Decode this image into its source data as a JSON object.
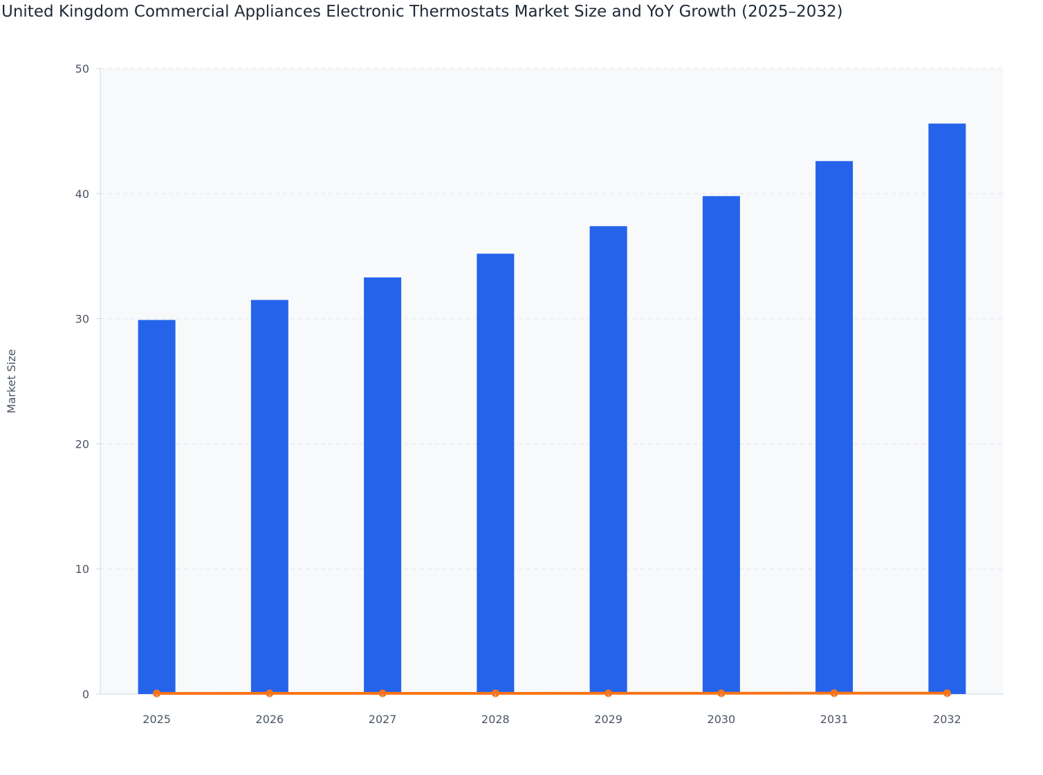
{
  "chart_data": {
    "type": "bar",
    "title": "United Kingdom Commercial Appliances Electronic Thermostats Market Size and YoY Growth (2025–2032)",
    "xlabel": "",
    "ylabel": "Market Size",
    "ylim": [
      0,
      50
    ],
    "yticks": [
      "0",
      "10",
      "20",
      "30",
      "40",
      "50"
    ],
    "categories": [
      "2025",
      "2026",
      "2027",
      "2028",
      "2029",
      "2030",
      "2031",
      "2032"
    ],
    "grid": true,
    "series": [
      {
        "type": "bar",
        "color": "#2563eb",
        "values": [
          29.9,
          31.5,
          33.3,
          35.2,
          37.4,
          39.8,
          42.6,
          45.6
        ]
      },
      {
        "type": "line",
        "color": "#f97316",
        "values": [
          0.05,
          0.054,
          0.057,
          0.057,
          0.063,
          0.064,
          0.07,
          0.07
        ]
      }
    ]
  }
}
